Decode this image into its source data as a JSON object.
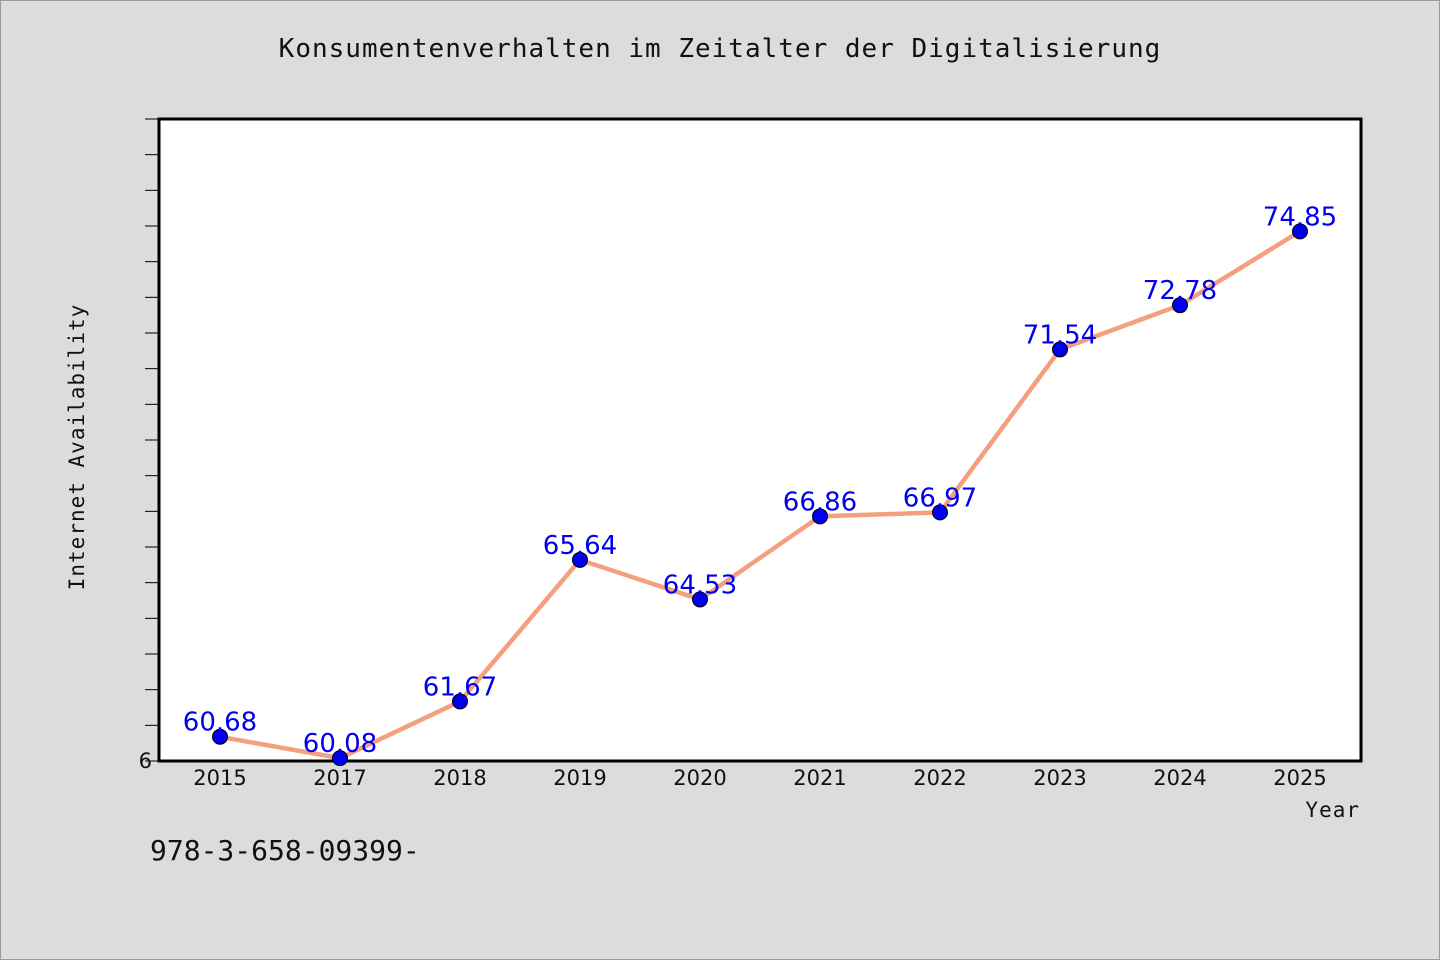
{
  "chart_data": {
    "type": "line",
    "title": "Konsumentenverhalten im Zeitalter der Digitalisierung",
    "xlabel": "Year",
    "ylabel": "Internet Availability",
    "categories": [
      "2015",
      "2017",
      "2018",
      "2019",
      "2020",
      "2021",
      "2022",
      "2023",
      "2024",
      "2025"
    ],
    "series": [
      {
        "values": [
          60.68,
          60.08,
          61.67,
          65.64,
          64.53,
          66.86,
          66.97,
          71.54,
          72.78,
          74.85
        ],
        "labels": [
          "60.68",
          "60.08",
          "61.67",
          "65.64",
          "64.53",
          "66.86",
          "66.97",
          "71.54",
          "72.78",
          "74.85"
        ]
      }
    ],
    "ylim": [
      60,
      78
    ],
    "y_tick_label": "6",
    "grid": false,
    "legend": "none",
    "line_color": "#f4a07f",
    "marker_color": "#0000ee",
    "label_color": "#0000ee"
  },
  "footnote": "978-3-658-09399-"
}
